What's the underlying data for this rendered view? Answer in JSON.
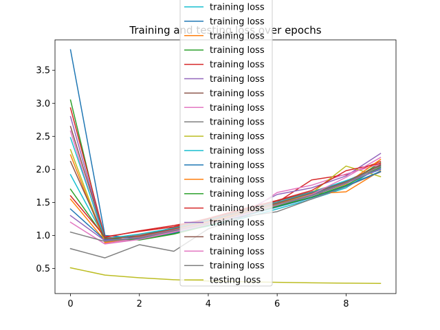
{
  "chart_data": {
    "type": "line",
    "title": "Training and testing loss over epochs",
    "xlabel": "",
    "ylabel": "",
    "xlim": [
      -0.45,
      9.45
    ],
    "ylim": [
      0.12,
      3.96
    ],
    "xticks": [
      0,
      2,
      4,
      6,
      8
    ],
    "yticks": [
      0.5,
      1.0,
      1.5,
      2.0,
      2.5,
      3.0,
      3.5
    ],
    "ytick_labels": [
      "0.5",
      "1.0",
      "1.5",
      "2.0",
      "2.5",
      "3.0",
      "3.5"
    ],
    "grid": false,
    "legend_position": "upper-center",
    "x": [
      0,
      1,
      2,
      3,
      4,
      5,
      6,
      7,
      8,
      9
    ],
    "series": [
      {
        "name": "training loss",
        "color": "#17becf",
        "values": [
          1.92,
          0.95,
          0.98,
          1.05,
          1.14,
          1.26,
          1.4,
          1.55,
          1.72,
          2.05
        ]
      },
      {
        "name": "training loss",
        "color": "#1f77b4",
        "values": [
          3.81,
          1.0,
          0.96,
          1.08,
          1.2,
          1.33,
          1.46,
          1.62,
          1.8,
          2.0
        ]
      },
      {
        "name": "training loss",
        "color": "#ff7f0e",
        "values": [
          1.55,
          0.92,
          1.01,
          1.1,
          1.22,
          1.37,
          1.49,
          1.63,
          1.66,
          1.98
        ]
      },
      {
        "name": "training loss",
        "color": "#2ca02c",
        "values": [
          3.05,
          0.9,
          0.94,
          1.03,
          1.18,
          1.32,
          1.45,
          1.6,
          1.78,
          2.1
        ]
      },
      {
        "name": "training loss",
        "color": "#d62728",
        "values": [
          2.93,
          0.97,
          1.07,
          1.15,
          1.25,
          1.39,
          1.5,
          1.84,
          1.92,
          2.12
        ]
      },
      {
        "name": "training loss",
        "color": "#9467bd",
        "values": [
          2.8,
          0.94,
          1.0,
          1.09,
          1.21,
          1.35,
          1.62,
          1.72,
          1.9,
          2.24
        ]
      },
      {
        "name": "training loss",
        "color": "#8c564b",
        "values": [
          2.65,
          0.96,
          0.99,
          1.12,
          1.24,
          1.38,
          1.52,
          1.66,
          1.82,
          2.06
        ]
      },
      {
        "name": "training loss",
        "color": "#e377c2",
        "values": [
          2.58,
          0.88,
          0.96,
          1.06,
          1.17,
          1.3,
          1.65,
          1.76,
          1.93,
          2.08
        ]
      },
      {
        "name": "training loss",
        "color": "#7f7f7f",
        "values": [
          0.8,
          0.66,
          0.86,
          0.76,
          1.1,
          1.28,
          1.36,
          1.55,
          1.74,
          1.96
        ]
      },
      {
        "name": "training loss",
        "color": "#bcbd22",
        "values": [
          2.3,
          0.9,
          0.97,
          1.07,
          1.19,
          1.33,
          1.47,
          1.64,
          2.05,
          1.89
        ]
      },
      {
        "name": "training loss",
        "color": "#17becf",
        "values": [
          2.48,
          0.95,
          1.02,
          1.11,
          1.23,
          1.36,
          1.5,
          1.65,
          1.83,
          2.02
        ]
      },
      {
        "name": "training loss",
        "color": "#1f77b4",
        "values": [
          1.4,
          0.93,
          0.95,
          1.04,
          1.16,
          1.29,
          1.43,
          1.57,
          1.75,
          1.97
        ]
      },
      {
        "name": "training loss",
        "color": "#ff7f0e",
        "values": [
          2.22,
          0.89,
          0.98,
          1.09,
          1.2,
          1.34,
          1.48,
          1.61,
          1.78,
          2.15
        ]
      },
      {
        "name": "training loss",
        "color": "#2ca02c",
        "values": [
          1.7,
          0.96,
          0.93,
          1.02,
          1.15,
          1.31,
          1.44,
          1.58,
          1.76,
          2.03
        ]
      },
      {
        "name": "training loss",
        "color": "#d62728",
        "values": [
          1.6,
          0.98,
          1.06,
          1.13,
          1.26,
          1.4,
          1.53,
          1.68,
          1.98,
          2.09
        ]
      },
      {
        "name": "training loss",
        "color": "#9467bd",
        "values": [
          1.3,
          0.92,
          0.97,
          1.08,
          1.19,
          1.32,
          1.46,
          1.6,
          1.79,
          2.01
        ]
      },
      {
        "name": "training loss",
        "color": "#8c564b",
        "values": [
          2.12,
          0.95,
          0.99,
          1.1,
          1.22,
          1.36,
          1.49,
          1.64,
          1.81,
          2.07
        ]
      },
      {
        "name": "training loss",
        "color": "#e377c2",
        "values": [
          1.2,
          0.87,
          0.94,
          1.05,
          1.17,
          1.31,
          1.46,
          1.62,
          1.88,
          2.18
        ]
      },
      {
        "name": "training loss",
        "color": "#7f7f7f",
        "values": [
          1.05,
          0.91,
          0.96,
          1.07,
          1.18,
          1.33,
          1.47,
          1.61,
          1.8,
          2.04
        ]
      },
      {
        "name": "testing loss",
        "color": "#bcbd22",
        "values": [
          0.51,
          0.4,
          0.36,
          0.33,
          0.31,
          0.3,
          0.29,
          0.283,
          0.278,
          0.273
        ]
      }
    ]
  }
}
